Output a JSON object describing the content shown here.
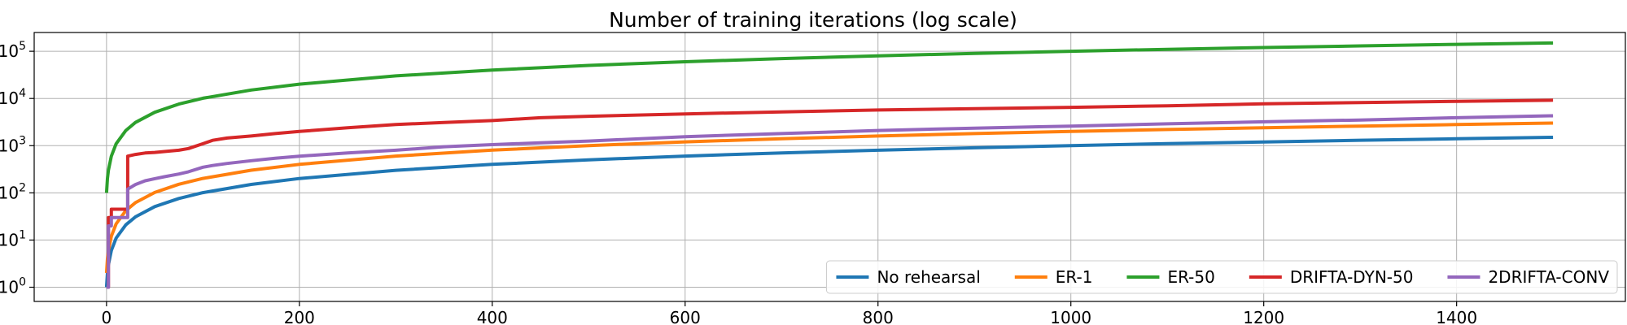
{
  "chart_data": {
    "type": "line",
    "title": "Number of training iterations (log scale)",
    "xlabel": "",
    "ylabel": "",
    "yscale": "log",
    "xlim": [
      -75,
      1575
    ],
    "ylim": [
      0.5,
      250000
    ],
    "x_ticks": [
      0,
      200,
      400,
      600,
      800,
      1000,
      1200,
      1400
    ],
    "x_tick_labels": [
      "0",
      "200",
      "400",
      "600",
      "800",
      "1000",
      "1200",
      "1400"
    ],
    "y_ticks": [
      1,
      10,
      100,
      1000,
      10000,
      100000
    ],
    "y_tick_labels": [
      {
        "base": "10",
        "exp": "0"
      },
      {
        "base": "10",
        "exp": "1"
      },
      {
        "base": "10",
        "exp": "2"
      },
      {
        "base": "10",
        "exp": "3"
      },
      {
        "base": "10",
        "exp": "4"
      },
      {
        "base": "10",
        "exp": "5"
      }
    ],
    "grid": true,
    "legend_position": "lower-right",
    "series": [
      {
        "name": "No rehearsal",
        "color": "#1f77b4",
        "x": [
          0,
          1,
          2,
          5,
          10,
          20,
          30,
          50,
          75,
          100,
          150,
          200,
          300,
          400,
          500,
          600,
          700,
          800,
          900,
          1000,
          1100,
          1200,
          1300,
          1400,
          1500
        ],
        "y": [
          1,
          2,
          3,
          6,
          11,
          21,
          31,
          51,
          76,
          101,
          151,
          201,
          301,
          401,
          501,
          601,
          701,
          801,
          901,
          1001,
          1101,
          1201,
          1301,
          1401,
          1501
        ]
      },
      {
        "name": "ER-1",
        "color": "#ff7f0e",
        "x": [
          0,
          1,
          2,
          5,
          10,
          20,
          30,
          50,
          75,
          100,
          150,
          200,
          300,
          400,
          500,
          600,
          700,
          800,
          900,
          1000,
          1100,
          1200,
          1300,
          1400,
          1500
        ],
        "y": [
          2,
          4,
          6,
          12,
          22,
          42,
          62,
          102,
          152,
          202,
          302,
          402,
          602,
          802,
          1002,
          1202,
          1402,
          1602,
          1802,
          2002,
          2202,
          2402,
          2602,
          2802,
          3002
        ]
      },
      {
        "name": "ER-50",
        "color": "#2ca02c",
        "x": [
          0,
          1,
          2,
          5,
          10,
          20,
          30,
          50,
          75,
          100,
          150,
          200,
          300,
          400,
          500,
          600,
          700,
          800,
          900,
          1000,
          1100,
          1200,
          1300,
          1400,
          1500
        ],
        "y": [
          100,
          200,
          300,
          600,
          1100,
          2100,
          3100,
          5100,
          7600,
          10100,
          15100,
          20100,
          30100,
          40100,
          50100,
          60100,
          70100,
          80100,
          90100,
          100100,
          110100,
          120100,
          130100,
          140100,
          150100
        ]
      },
      {
        "name": "DRIFTA-DYN-50",
        "color": "#d62728",
        "x": [
          0,
          2,
          5,
          10,
          20,
          22,
          30,
          40,
          50,
          60,
          75,
          85,
          100,
          110,
          125,
          150,
          175,
          200,
          250,
          300,
          350,
          400,
          450,
          500,
          600,
          700,
          800,
          900,
          1000,
          1100,
          1200,
          1300,
          1400,
          1500
        ],
        "y": [
          1,
          30,
          45,
          45,
          45,
          600,
          650,
          700,
          720,
          750,
          800,
          870,
          1100,
          1300,
          1450,
          1600,
          1800,
          2000,
          2400,
          2800,
          3100,
          3400,
          3900,
          4200,
          4700,
          5200,
          5700,
          6100,
          6500,
          7000,
          7700,
          8200,
          8700,
          9200
        ]
      },
      {
        "name": "2DRIFTA-CONV",
        "color": "#9467bd",
        "x": [
          0,
          2,
          5,
          10,
          20,
          22,
          30,
          40,
          50,
          60,
          75,
          85,
          100,
          110,
          125,
          150,
          175,
          200,
          250,
          300,
          350,
          400,
          450,
          500,
          600,
          700,
          800,
          900,
          1000,
          1100,
          1200,
          1300,
          1400,
          1500
        ],
        "y": [
          1,
          20,
          30,
          30,
          30,
          120,
          150,
          180,
          200,
          220,
          250,
          280,
          350,
          380,
          420,
          480,
          540,
          600,
          700,
          800,
          950,
          1050,
          1150,
          1250,
          1550,
          1800,
          2100,
          2350,
          2600,
          2900,
          3200,
          3500,
          3900,
          4300
        ]
      }
    ]
  }
}
